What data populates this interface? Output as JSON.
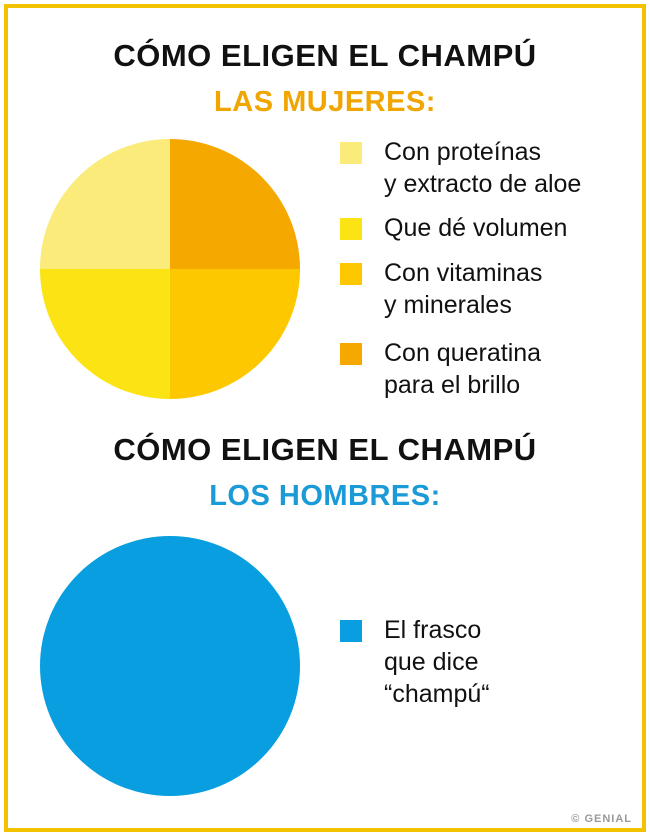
{
  "chart_data": [
    {
      "type": "pie",
      "title": "CÓMO ELIGEN EL CHAMPÚ",
      "subtitle": "LAS MUJERES:",
      "subtitle_color": "#f0a500",
      "slices": [
        {
          "label": "Con proteínas\ny extracto de aloe",
          "value": 25,
          "color": "#fbeb7a"
        },
        {
          "label": "Que dé volumen",
          "value": 25,
          "color": "#fce414"
        },
        {
          "label": "Con vitaminas\ny minerales",
          "value": 25,
          "color": "#fdc800"
        },
        {
          "label": "Con queratina\npara el brillo",
          "value": 25,
          "color": "#f5a800"
        }
      ]
    },
    {
      "type": "pie",
      "title": "CÓMO ELIGEN EL CHAMPÚ",
      "subtitle": "LOS HOMBRES:",
      "subtitle_color": "#1a9ad6",
      "slices": [
        {
          "label": "El frasco\nque dice\n“champú“",
          "value": 100,
          "color": "#089ee0"
        }
      ]
    }
  ],
  "credit": "© GENIAL",
  "frame_color": "#f2c200"
}
